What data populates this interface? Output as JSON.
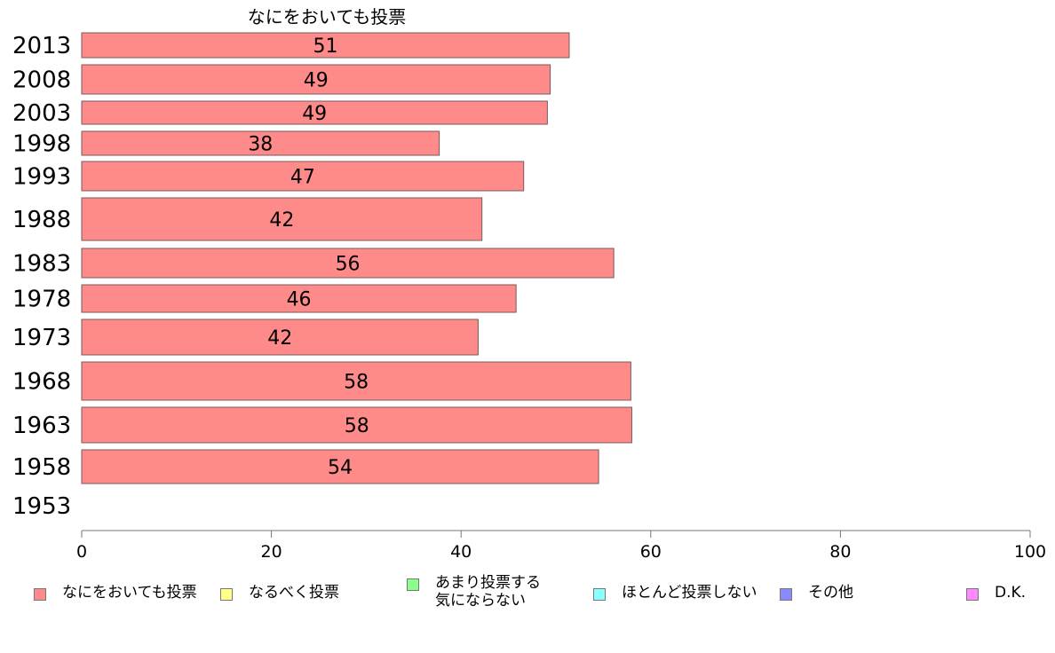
{
  "chart_data": {
    "type": "bar",
    "orientation": "horizontal",
    "title": "なにをおいても投票",
    "categories": [
      "2013",
      "2008",
      "2003",
      "1998",
      "1993",
      "1988",
      "1983",
      "1978",
      "1973",
      "1968",
      "1963",
      "1958",
      "1953"
    ],
    "values": [
      51.4,
      49.4,
      49.1,
      37.7,
      46.6,
      42.2,
      56.1,
      45.8,
      41.8,
      57.9,
      58.0,
      54.5,
      null
    ],
    "data_labels": [
      "51",
      "49",
      "49",
      "38",
      "47",
      "42",
      "56",
      "46",
      "42",
      "58",
      "58",
      "54",
      ""
    ],
    "xlim": [
      0,
      100
    ],
    "x_ticks": [
      "0",
      "20",
      "40",
      "60",
      "80",
      "100"
    ],
    "bar_color": "#ff8a8a",
    "grid": false,
    "legend_position": "bottom",
    "legend": [
      {
        "label": "なにをおいても投票",
        "color": "#ff8a8a"
      },
      {
        "label": "なるべく投票",
        "color": "#ffff8a"
      },
      {
        "label": "あまり投票する\n気にならない",
        "color": "#8aff8a"
      },
      {
        "label": "ほとんど投票しない",
        "color": "#8affff"
      },
      {
        "label": "その他",
        "color": "#8a8aff"
      },
      {
        "label": "D.K.",
        "color": "#ff8aff"
      }
    ]
  }
}
